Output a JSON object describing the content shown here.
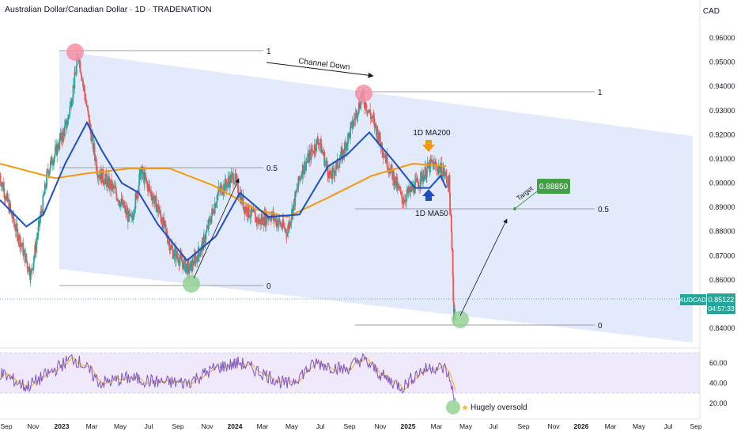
{
  "title": "Australian Dollar/Canadian Dollar · 1D · TRADENATION",
  "currency": "CAD",
  "symbol": "AUDCAD",
  "last_price": "0.85122",
  "countdown": "04:57:33",
  "target_label": "Target",
  "target_value": "0.88850",
  "annotations": {
    "channel": "Channel Down",
    "ma200": "1D MA200",
    "ma50": "1D MA50",
    "oversold": "Hugely oversold"
  },
  "fib_labels": {
    "one": "1",
    "half": "0.5",
    "zero": "0"
  },
  "colors": {
    "channel": "#bcd0f7",
    "ma50": "#1e4fc2",
    "ma200": "#f59a0c",
    "up": "#26a69a",
    "down": "#ef5350",
    "rsi": "#7e57c2",
    "rsi_ma": "#f4b63f",
    "target": "#43a047",
    "last": "#26a69a"
  },
  "chart_data": {
    "type": "candlestick",
    "price_axis": {
      "ticks": [
        "0.96000",
        "0.95000",
        "0.94000",
        "0.93000",
        "0.92000",
        "0.91000",
        "0.90000",
        "0.89000",
        "0.88000",
        "0.87000",
        "0.86000",
        "0.85000",
        "0.84000"
      ],
      "range": [
        0.836,
        0.965
      ]
    },
    "rsi_axis": {
      "ticks": [
        "60.00",
        "40.00",
        "20.00"
      ]
    },
    "x_labels": [
      "Sep",
      "Nov",
      "2023",
      "Mar",
      "May",
      "Jul",
      "Sep",
      "Nov",
      "2024",
      "Mar",
      "May",
      "Jul",
      "Sep",
      "Nov",
      "2025",
      "Mar",
      "May",
      "Jul",
      "Sep",
      "Nov",
      "2026",
      "Mar",
      "May",
      "Jul",
      "Sep"
    ],
    "x_bold": [
      "2023",
      "2024",
      "2025",
      "2026"
    ],
    "x_range": [
      "2022-08-20",
      "2026-09-10"
    ],
    "price_path": [
      [
        "2022-08-20",
        0.903
      ],
      [
        "2022-09-20",
        0.883
      ],
      [
        "2022-10-25",
        0.862
      ],
      [
        "2022-11-30",
        0.905
      ],
      [
        "2023-01-10",
        0.925
      ],
      [
        "2023-02-03",
        0.953
      ],
      [
        "2023-02-25",
        0.925
      ],
      [
        "2023-03-15",
        0.905
      ],
      [
        "2023-04-20",
        0.897
      ],
      [
        "2023-05-25",
        0.884
      ],
      [
        "2023-06-15",
        0.905
      ],
      [
        "2023-07-20",
        0.89
      ],
      [
        "2023-08-20",
        0.872
      ],
      [
        "2023-09-25",
        0.864
      ],
      [
        "2023-10-25",
        0.875
      ],
      [
        "2023-11-25",
        0.896
      ],
      [
        "2023-12-28",
        0.903
      ],
      [
        "2024-01-20",
        0.89
      ],
      [
        "2024-02-20",
        0.884
      ],
      [
        "2024-03-15",
        0.887
      ],
      [
        "2024-04-20",
        0.88
      ],
      [
        "2024-05-20",
        0.905
      ],
      [
        "2024-06-25",
        0.918
      ],
      [
        "2024-07-20",
        0.902
      ],
      [
        "2024-08-15",
        0.912
      ],
      [
        "2024-09-25",
        0.936
      ],
      [
        "2024-10-20",
        0.925
      ],
      [
        "2024-11-15",
        0.91
      ],
      [
        "2024-12-20",
        0.893
      ],
      [
        "2025-01-20",
        0.9
      ],
      [
        "2025-02-20",
        0.908
      ],
      [
        "2025-03-15",
        0.905
      ],
      [
        "2025-03-28",
        0.9
      ],
      [
        "2025-04-03",
        0.875
      ],
      [
        "2025-04-08",
        0.843
      ],
      [
        "2025-04-10",
        0.851
      ]
    ],
    "ma50_path": [
      [
        "2022-08-20",
        0.893
      ],
      [
        "2022-10-15",
        0.882
      ],
      [
        "2022-11-20",
        0.887
      ],
      [
        "2023-01-05",
        0.908
      ],
      [
        "2023-02-20",
        0.925
      ],
      [
        "2023-03-25",
        0.913
      ],
      [
        "2023-05-05",
        0.9
      ],
      [
        "2023-06-10",
        0.896
      ],
      [
        "2023-07-20",
        0.883
      ],
      [
        "2023-09-20",
        0.868
      ],
      [
        "2023-11-20",
        0.878
      ],
      [
        "2024-01-10",
        0.896
      ],
      [
        "2024-03-10",
        0.886
      ],
      [
        "2024-05-15",
        0.887
      ],
      [
        "2024-07-15",
        0.907
      ],
      [
        "2024-08-25",
        0.912
      ],
      [
        "2024-10-10",
        0.921
      ],
      [
        "2024-12-01",
        0.909
      ],
      [
        "2025-01-15",
        0.898
      ],
      [
        "2025-02-15",
        0.898
      ],
      [
        "2025-03-10",
        0.903
      ],
      [
        "2025-03-22",
        0.898
      ]
    ],
    "ma200_path": [
      [
        "2022-08-20",
        0.908
      ],
      [
        "2022-12-15",
        0.902
      ],
      [
        "2023-02-20",
        0.904
      ],
      [
        "2023-05-20",
        0.906
      ],
      [
        "2023-08-15",
        0.906
      ],
      [
        "2023-11-15",
        0.899
      ],
      [
        "2024-02-15",
        0.889
      ],
      [
        "2024-04-20",
        0.886
      ],
      [
        "2024-07-15",
        0.894
      ],
      [
        "2024-10-15",
        0.903
      ],
      [
        "2025-01-10",
        0.908
      ],
      [
        "2025-03-22",
        0.907
      ]
    ],
    "rsi_path": [
      [
        "2022-08-20",
        50
      ],
      [
        "2022-10-15",
        36
      ],
      [
        "2022-12-10",
        52
      ],
      [
        "2023-01-20",
        65
      ],
      [
        "2023-02-10",
        59
      ],
      [
        "2023-03-20",
        40
      ],
      [
        "2023-05-20",
        45
      ],
      [
        "2023-07-20",
        41
      ],
      [
        "2023-09-20",
        40
      ],
      [
        "2023-11-20",
        55
      ],
      [
        "2024-01-10",
        60
      ],
      [
        "2024-03-10",
        47
      ],
      [
        "2024-04-20",
        38
      ],
      [
        "2024-06-20",
        60
      ],
      [
        "2024-08-20",
        53
      ],
      [
        "2024-09-25",
        64
      ],
      [
        "2024-11-15",
        44
      ],
      [
        "2024-12-20",
        36
      ],
      [
        "2025-01-20",
        50
      ],
      [
        "2025-02-20",
        56
      ],
      [
        "2025-03-20",
        54
      ],
      [
        "2025-04-03",
        38
      ],
      [
        "2025-04-08",
        17
      ],
      [
        "2025-04-10",
        22
      ]
    ]
  }
}
